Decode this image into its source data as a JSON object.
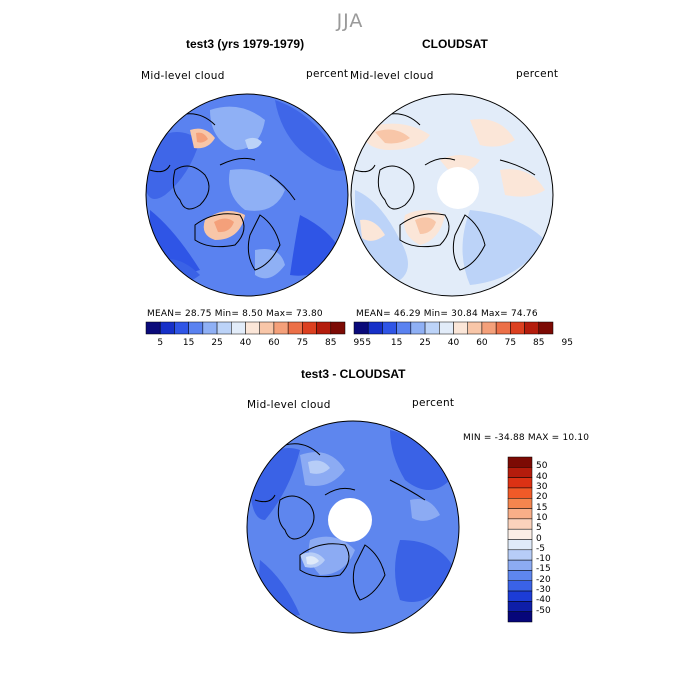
{
  "page": {
    "title": "JJA"
  },
  "panels": [
    {
      "title": "test3 (yrs 1979-1979)",
      "variable": "Mid-level cloud",
      "units": "percent",
      "stats": "MEAN=  28.75   Min=    8.50   Max=  73.80",
      "colorbar": {
        "levels": [
          "5",
          "15",
          "25",
          "40",
          "60",
          "75",
          "85",
          "95"
        ],
        "colors": [
          "#0a0a7a",
          "#1630c8",
          "#2f55e6",
          "#5a82f0",
          "#8fb0f5",
          "#bcd3f8",
          "#e2ecf9",
          "#fbe6d8",
          "#f8c6a8",
          "#f4a07a",
          "#ec7048",
          "#dc4020",
          "#b41c0c",
          "#7c0a04"
        ]
      }
    },
    {
      "title": "CLOUDSAT",
      "variable": "Mid-level cloud",
      "units": "percent",
      "stats": "MEAN=  46.29   Min=   30.84   Max=  74.76",
      "colorbar": {
        "levels": [
          "5",
          "15",
          "25",
          "40",
          "60",
          "75",
          "85",
          "95"
        ],
        "colors": [
          "#0a0a7a",
          "#1630c8",
          "#2f55e6",
          "#5a82f0",
          "#8fb0f5",
          "#bcd3f8",
          "#e2ecf9",
          "#fbe6d8",
          "#f8c6a8",
          "#f4a07a",
          "#ec7048",
          "#dc4020",
          "#b41c0c",
          "#7c0a04"
        ]
      }
    },
    {
      "title": "test3 - CLOUDSAT",
      "variable": "Mid-level cloud",
      "units": "percent",
      "stats": "MIN = -34.88 MAX =   10.10",
      "colorbar": {
        "levels": [
          "50",
          "40",
          "30",
          "20",
          "15",
          "10",
          "5",
          "0",
          "-5",
          "-10",
          "-15",
          "-20",
          "-30",
          "-40",
          "-50"
        ],
        "colors": [
          "#7c0a04",
          "#b41c0c",
          "#dc3214",
          "#f05a28",
          "#f4854e",
          "#f8ae88",
          "#fbd2bc",
          "#fbeee6",
          "#dfeaf9",
          "#b7cdf7",
          "#8cabf3",
          "#5e86ee",
          "#3a62e6",
          "#1c3cd6",
          "#0e1ea8",
          "#06067a"
        ]
      }
    }
  ],
  "chart_data": [
    {
      "type": "heatmap",
      "projection": "north-polar-stereographic",
      "title": "test3 (yrs 1979-1979)",
      "variable": "Mid-level cloud",
      "units": "percent",
      "mean": 28.75,
      "min": 8.5,
      "max": 73.8,
      "contour_levels": [
        5,
        15,
        25,
        40,
        60,
        75,
        85,
        95
      ]
    },
    {
      "type": "heatmap",
      "projection": "north-polar-stereographic",
      "title": "CLOUDSAT",
      "variable": "Mid-level cloud",
      "units": "percent",
      "mean": 46.29,
      "min": 30.84,
      "max": 74.76,
      "contour_levels": [
        5,
        15,
        25,
        40,
        60,
        75,
        85,
        95
      ]
    },
    {
      "type": "heatmap",
      "projection": "north-polar-stereographic",
      "title": "test3 - CLOUDSAT",
      "variable": "Mid-level cloud",
      "units": "percent",
      "min": -34.88,
      "max": 10.1,
      "contour_levels": [
        -50,
        -40,
        -30,
        -20,
        -15,
        -10,
        -5,
        0,
        5,
        10,
        15,
        20,
        30,
        40,
        50
      ]
    }
  ]
}
